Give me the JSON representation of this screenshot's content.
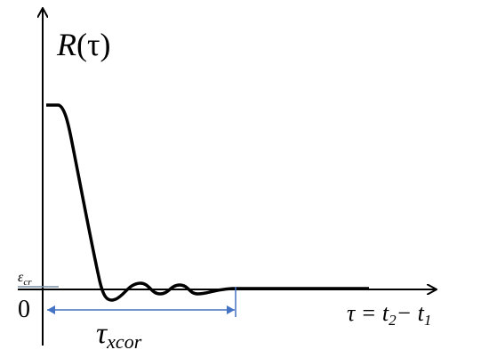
{
  "y_label": {
    "symbol": "R",
    "argument": "(τ)"
  },
  "epsilon": {
    "symbol": "ε",
    "subscript": "cr"
  },
  "origin": "0",
  "correlation_time": {
    "symbol": "τ",
    "subscript": "xcor"
  },
  "x_label": {
    "lhs": "τ = t",
    "sub_a": "2",
    "minus": "− t",
    "sub_b": "1"
  }
}
